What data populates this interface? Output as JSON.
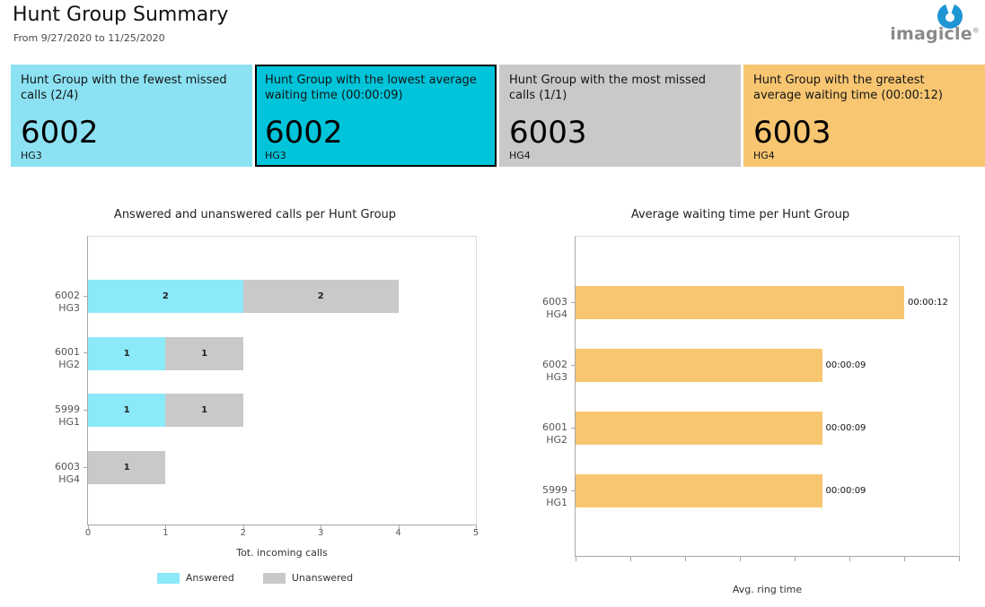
{
  "header": {
    "title": "Hunt Group Summary",
    "subtitle": "From 9/27/2020 to 11/25/2020",
    "logo": {
      "wordmark": "imagicle",
      "trademark": "®",
      "brand_blue": "#2095d3",
      "wordmark_gray": "#8a8a8a"
    }
  },
  "cards": [
    {
      "label": "Hunt Group with the fewest missed calls (2/4)",
      "value": "6002",
      "group": "HG3",
      "bg": "#8ce2f3",
      "highlighted": false
    },
    {
      "label": "Hunt Group with the lowest average waiting time (00:00:09)",
      "value": "6002",
      "group": "HG3",
      "bg": "#00c4da",
      "highlighted": true
    },
    {
      "label": "Hunt Group with the most missed calls (1/1)",
      "value": "6003",
      "group": "HG4",
      "bg": "#c9c9c9",
      "highlighted": false
    },
    {
      "label": "Hunt Group with the greatest average waiting time (00:00:12)",
      "value": "6003",
      "group": "HG4",
      "bg": "#f8c671",
      "highlighted": false
    }
  ],
  "chart_data": [
    {
      "type": "bar",
      "orientation": "horizontal",
      "stacked": true,
      "title": "Answered and unanswered calls per Hunt Group",
      "categories": [
        "6002 HG3",
        "6001 HG2",
        "5999 HG1",
        "6003 HG4"
      ],
      "series": [
        {
          "name": "Answered",
          "color": "#8ce9f9",
          "values": [
            2,
            1,
            1,
            0
          ]
        },
        {
          "name": "Unanswered",
          "color": "#c9c9c9",
          "values": [
            2,
            1,
            1,
            1
          ]
        }
      ],
      "xlabel": "Tot. incoming calls",
      "xlim": [
        0,
        5
      ],
      "xticks": [
        0,
        1,
        2,
        3,
        4,
        5
      ],
      "legend_position": "bottom",
      "grid": false
    },
    {
      "type": "bar",
      "orientation": "horizontal",
      "stacked": false,
      "title": "Average waiting time per Hunt Group",
      "categories": [
        "6003 HG4",
        "6002 HG3",
        "6001 HG2",
        "5999 HG1"
      ],
      "series": [
        {
          "name": "Avg. ring time",
          "color": "#f8c671",
          "values_seconds": [
            12,
            9,
            9,
            9
          ],
          "value_labels": [
            "00:00:12",
            "00:00:09",
            "00:00:09",
            "00:00:09"
          ]
        }
      ],
      "xlabel": "Avg. ring time",
      "xlim_seconds": [
        0,
        14
      ],
      "xtick_count": 8,
      "xtick_labels_visible": false,
      "grid": false
    }
  ]
}
